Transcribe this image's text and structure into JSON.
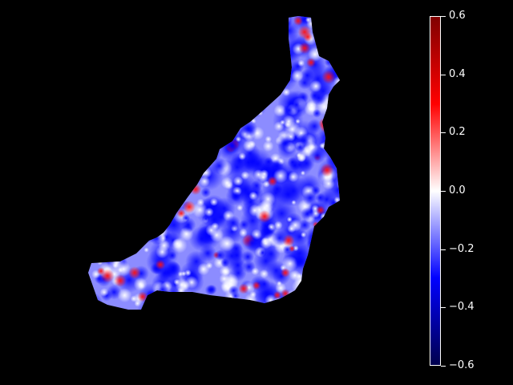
{
  "chart_data": {
    "type": "heatmap",
    "title": "",
    "xlabel": "",
    "ylabel": "",
    "colormap": "seismic",
    "colormap_stops": [
      "#00004d",
      "#0000ff",
      "#ffffff",
      "#ff0000",
      "#800000"
    ],
    "background_color": "#000000",
    "vmin": -0.6,
    "vmax": 0.6,
    "colorbar": {
      "placement": "right",
      "ticks": [
        0.6,
        0.4,
        0.2,
        0.0,
        -0.2,
        -0.4,
        -0.6
      ],
      "tick_labels": [
        "0.6",
        "0.4",
        "0.2",
        "0.0",
        "−0.2",
        "−0.4",
        "−0.6"
      ]
    },
    "value_summary": {
      "dominant_range": [
        -0.3,
        0.0
      ],
      "hotspots_max": 0.5
    }
  }
}
